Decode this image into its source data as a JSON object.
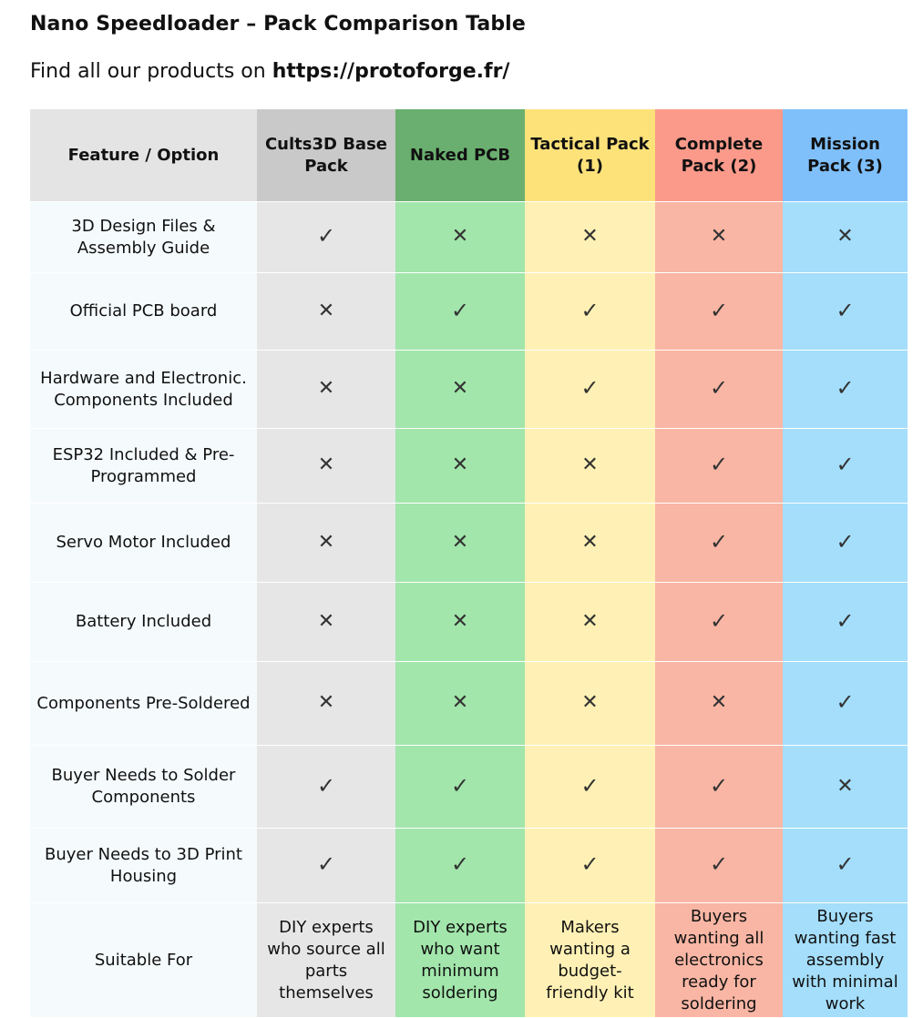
{
  "title": "Nano Speedloader – Pack Comparison Table",
  "intro": {
    "prefix": "Find all our products on ",
    "link": "https://protoforge.fr/"
  },
  "symbols": {
    "yes": "✓",
    "no": "✕"
  },
  "table": {
    "header_first": "Feature / Option",
    "packs": [
      {
        "name": "Cults3D Base Pack",
        "head_color": "#c9c9c9",
        "cell_color": "#e6e6e6"
      },
      {
        "name": "Naked PCB",
        "head_color": "#6aaf6f",
        "cell_color": "#a2e6ab"
      },
      {
        "name": "Tactical Pack (1)",
        "head_color": "#fde27a",
        "cell_color": "#fff1b5"
      },
      {
        "name": "Complete Pack (2)",
        "head_color": "#fb9a8a",
        "cell_color": "#f9b6a4"
      },
      {
        "name": "Mission Pack (3)",
        "head_color": "#7fc0fb",
        "cell_color": "#a4defb"
      }
    ],
    "header_first_color": "#e4e4e4",
    "rows": [
      {
        "feature": "3D Design Files & Assembly Guide",
        "values": [
          true,
          false,
          false,
          false,
          false
        ]
      },
      {
        "feature": "Official PCB board",
        "values": [
          false,
          true,
          true,
          true,
          true
        ]
      },
      {
        "feature": "Hardware and Electronic. Components Included",
        "values": [
          false,
          false,
          true,
          true,
          true
        ]
      },
      {
        "feature": "ESP32 Included & Pre-Programmed",
        "values": [
          false,
          false,
          false,
          true,
          true
        ]
      },
      {
        "feature": "Servo Motor Included",
        "values": [
          false,
          false,
          false,
          true,
          true
        ]
      },
      {
        "feature": "Battery Included",
        "values": [
          false,
          false,
          false,
          true,
          true
        ]
      },
      {
        "feature": "Components Pre-Soldered",
        "values": [
          false,
          false,
          false,
          false,
          true
        ]
      },
      {
        "feature": "Buyer Needs to Solder Components",
        "values": [
          true,
          true,
          true,
          true,
          false
        ]
      },
      {
        "feature": "Buyer Needs to 3D Print Housing",
        "values": [
          true,
          true,
          true,
          true,
          true
        ]
      }
    ],
    "suitable": {
      "label": "Suitable For",
      "values": [
        "DIY experts who source all parts themselves",
        "DIY experts who want minimum soldering",
        "Makers wanting a budget-friendly kit",
        "Buyers wanting all electronics ready for soldering",
        "Buyers wanting fast assembly with minimal work"
      ]
    }
  }
}
